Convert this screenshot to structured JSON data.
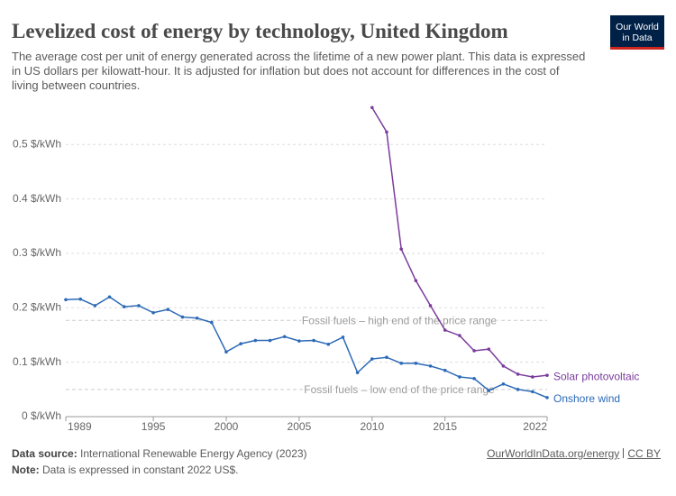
{
  "chart_data": {
    "type": "line",
    "title": "Levelized cost of energy by technology, United Kingdom",
    "subtitle": "The average cost per unit of energy generated across the lifetime of a new power plant. This data is expressed in US dollars per kilowatt-hour. It is adjusted for inflation but does not account for differences in the cost of living between countries.",
    "x": [
      1989,
      1990,
      1991,
      1992,
      1993,
      1994,
      1995,
      1996,
      1997,
      1998,
      1999,
      2000,
      2001,
      2002,
      2003,
      2004,
      2005,
      2006,
      2007,
      2008,
      2009,
      2010,
      2011,
      2012,
      2013,
      2014,
      2015,
      2016,
      2017,
      2018,
      2019,
      2020,
      2021,
      2022
    ],
    "series": [
      {
        "name": "Onshore wind",
        "color": "#2c6ab7",
        "values": [
          0.215,
          0.216,
          0.204,
          0.22,
          0.202,
          0.204,
          0.191,
          0.197,
          0.183,
          0.181,
          0.173,
          0.119,
          0.134,
          0.14,
          0.14,
          0.147,
          0.139,
          0.14,
          0.133,
          0.146,
          0.081,
          0.106,
          0.109,
          0.098,
          0.098,
          0.093,
          0.085,
          0.073,
          0.07,
          0.048,
          0.06,
          0.05,
          0.046,
          0.035
        ]
      },
      {
        "name": "Solar photovoltaic",
        "color": "#7b3b9c",
        "values": [
          null,
          null,
          null,
          null,
          null,
          null,
          null,
          null,
          null,
          null,
          null,
          null,
          null,
          null,
          null,
          null,
          null,
          null,
          null,
          null,
          null,
          0.568,
          0.523,
          0.308,
          0.25,
          0.204,
          0.159,
          0.149,
          0.121,
          0.124,
          0.093,
          0.078,
          0.073,
          0.076
        ]
      }
    ],
    "reference_lines": [
      {
        "label": "Fossil fuels – high end of the price range",
        "value": 0.177
      },
      {
        "label": "Fossil fuels – low end of the price range",
        "value": 0.05
      }
    ],
    "xlim": [
      1989,
      2022
    ],
    "xticks": [
      1989,
      1995,
      2000,
      2005,
      2010,
      2015,
      2022
    ],
    "ylim": [
      0,
      0.58
    ],
    "yticks": [
      {
        "value": 0,
        "label": "0 $/kWh"
      },
      {
        "value": 0.1,
        "label": "0.1 $/kWh"
      },
      {
        "value": 0.2,
        "label": "0.2 $/kWh"
      },
      {
        "value": 0.3,
        "label": "0.3 $/kWh"
      },
      {
        "value": 0.4,
        "label": "0.4 $/kWh"
      },
      {
        "value": 0.5,
        "label": "0.5 $/kWh"
      }
    ],
    "grid": true
  },
  "logo": {
    "lines": [
      "Our World",
      "in Data"
    ]
  },
  "footer": {
    "source_label": "Data source:",
    "source": "International Renewable Energy Agency (2023)",
    "note_label": "Note:",
    "note": "Data is expressed in constant 2022 US$.",
    "links": [
      "OurWorldInData.org/energy",
      "CC BY"
    ]
  }
}
